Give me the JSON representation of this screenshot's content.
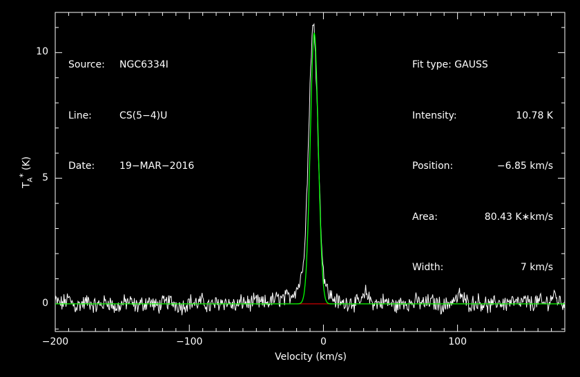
{
  "header_left": [
    {
      "key": "Source:",
      "value": "NGC6334I"
    },
    {
      "key": "Line:",
      "value": "CS(5−4)U"
    },
    {
      "key": "Date:",
      "value": "19−MAR−2016"
    }
  ],
  "header_right": {
    "fit_type": "Fit type: GAUSS",
    "rows": [
      {
        "key": "Intensity:",
        "value": "10.78 K"
      },
      {
        "key": "Position:",
        "value": "−6.85 km/s"
      },
      {
        "key": "Area:",
        "value": "80.43 K∗km/s"
      },
      {
        "key": "Width:",
        "value": "7 km/s"
      }
    ]
  },
  "colors": {
    "background": "#000000",
    "axes": "#ffffff",
    "spectrum": "#ffffff",
    "fit": "#00ff00",
    "baseline": "#ff0000"
  },
  "chart_data": {
    "type": "line",
    "title": "",
    "xlabel": "Velocity (km/s)",
    "ylabel_main": "T",
    "ylabel_sub": "A",
    "ylabel_sup": "*",
    "ylabel_unit": " (K)",
    "xlim": [
      -200,
      180
    ],
    "ylim": [
      -1.1,
      11.6
    ],
    "xticks": [
      -200,
      -100,
      0,
      100
    ],
    "xticklabels": [
      "−200",
      "−100",
      "0",
      "100"
    ],
    "yticks": [
      0,
      5,
      10
    ],
    "yticklabels": [
      "0",
      "5",
      "10"
    ],
    "grid": false,
    "legend": "none",
    "series": [
      {
        "role": "spectrum",
        "x": [
          -200,
          -195,
          -190,
          -185,
          -180,
          -175,
          -170,
          -165,
          -160,
          -155,
          -150,
          -145,
          -140,
          -135,
          -130,
          -125,
          -120,
          -115,
          -110,
          -105,
          -100,
          -95,
          -90,
          -85,
          -80,
          -75,
          -70,
          -65,
          -60,
          -55,
          -50,
          -45,
          -40,
          -35,
          -30,
          -25,
          -20,
          -18,
          -16,
          -14,
          -12,
          -11,
          -10,
          -9,
          -8,
          -7,
          -6,
          -5,
          -4,
          -3,
          -2,
          0,
          2,
          4,
          6,
          8,
          10,
          15,
          20,
          25,
          30,
          32,
          34,
          36,
          40,
          45,
          50,
          55,
          60,
          65,
          70,
          75,
          80,
          85,
          90,
          95,
          100,
          102,
          104,
          106,
          110,
          115,
          120,
          125,
          130,
          135,
          140,
          145,
          150,
          155,
          160,
          165,
          170,
          172,
          174,
          176,
          180
        ],
        "y": [
          0.1,
          0.0,
          0.2,
          -0.1,
          0.0,
          0.1,
          -0.1,
          0.0,
          0.1,
          -0.2,
          0.0,
          0.1,
          -0.1,
          0.0,
          0.1,
          -0.1,
          0.0,
          0.1,
          0.0,
          -0.1,
          0.1,
          0.0,
          0.1,
          -0.1,
          0.0,
          0.1,
          0.0,
          -0.1,
          0.1,
          0.0,
          0.1,
          0.0,
          0.1,
          0.2,
          0.2,
          0.3,
          0.6,
          0.8,
          1.2,
          2.4,
          4.9,
          6.8,
          8.7,
          10.1,
          11.0,
          10.9,
          10.1,
          8.6,
          6.7,
          4.8,
          3.1,
          1.3,
          0.7,
          0.4,
          0.3,
          0.2,
          0.1,
          0.0,
          0.1,
          0.0,
          0.2,
          0.5,
          0.2,
          0.1,
          0.0,
          0.1,
          0.0,
          -0.1,
          0.1,
          0.0,
          0.1,
          0.0,
          0.1,
          0.0,
          -0.1,
          0.1,
          0.2,
          0.4,
          0.2,
          0.1,
          0.0,
          0.1,
          0.0,
          -0.1,
          0.1,
          0.0,
          0.1,
          0.0,
          0.1,
          0.0,
          0.1,
          0.0,
          0.2,
          0.4,
          0.2,
          0.1,
          0.0
        ]
      },
      {
        "role": "fit",
        "type": "gaussian",
        "amplitude": 10.78,
        "center": -6.85,
        "fwhm": 7
      },
      {
        "role": "baseline",
        "x": [
          -200,
          180
        ],
        "y": [
          0,
          0
        ]
      }
    ]
  }
}
